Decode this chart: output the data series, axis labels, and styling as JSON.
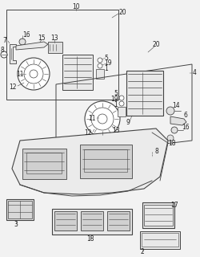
{
  "bg_color": "#f2f2f2",
  "line_color": "#444444",
  "label_color": "#222222",
  "label_fs": 5.5,
  "fig_w": 2.5,
  "fig_h": 3.2,
  "dpi": 100
}
